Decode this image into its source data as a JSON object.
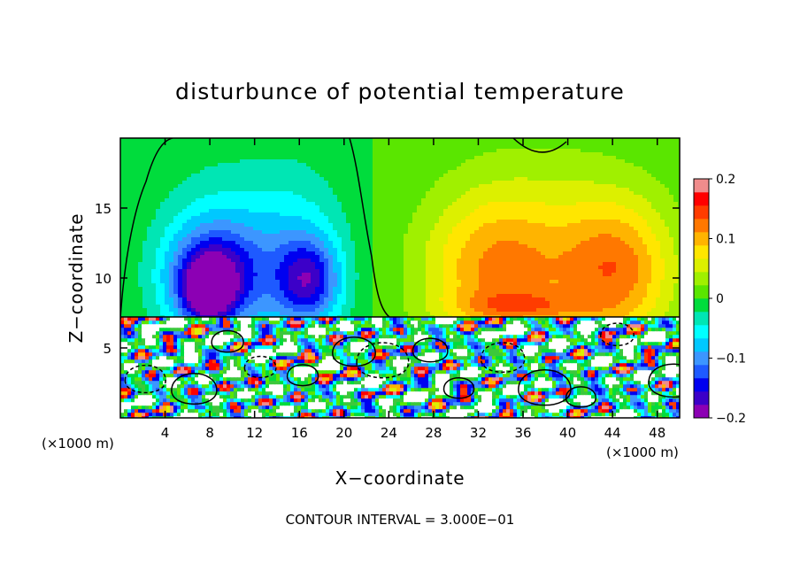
{
  "chart_data": {
    "type": "heatmap",
    "title": "disturbunce of potential temperature",
    "xlabel": "X−coordinate",
    "ylabel": "Z−coordinate",
    "x_unit_left": "(×1000 m)",
    "x_unit_right": "(×1000 m)",
    "footer": "CONTOUR INTERVAL = 3.000E−01",
    "xlim": [
      0,
      50
    ],
    "ylim": [
      0,
      20
    ],
    "x_ticks": [
      {
        "value": 4,
        "label": "4"
      },
      {
        "value": 8,
        "label": "8"
      },
      {
        "value": 12,
        "label": "12"
      },
      {
        "value": 16,
        "label": "16"
      },
      {
        "value": 20,
        "label": "20"
      },
      {
        "value": 24,
        "label": "24"
      },
      {
        "value": 28,
        "label": "28"
      },
      {
        "value": 32,
        "label": "32"
      },
      {
        "value": 36,
        "label": "36"
      },
      {
        "value": 40,
        "label": "40"
      },
      {
        "value": 44,
        "label": "44"
      },
      {
        "value": 48,
        "label": "48"
      }
    ],
    "y_ticks": [
      {
        "value": 5,
        "label": "5"
      },
      {
        "value": 10,
        "label": "10"
      },
      {
        "value": 15,
        "label": "15"
      }
    ],
    "colorbar": {
      "min": -0.2,
      "max": 0.2,
      "ticks": [
        {
          "value": 0.2,
          "label": "0.2"
        },
        {
          "value": 0.1,
          "label": "0.1"
        },
        {
          "value": 0,
          "label": "0"
        },
        {
          "value": -0.1,
          "label": "−0.1"
        },
        {
          "value": -0.2,
          "label": "−0.2"
        }
      ],
      "colors": [
        "#8c00b4",
        "#3c00c8",
        "#0000f0",
        "#1e5aff",
        "#3c96ff",
        "#00c8ff",
        "#00ffff",
        "#00e6b4",
        "#00dc3c",
        "#5ae600",
        "#a0f000",
        "#dcf000",
        "#ffe600",
        "#ffb400",
        "#ff7800",
        "#ff3c00",
        "#ff0000",
        "#f08c8c"
      ]
    },
    "upper_layer_z_range": [
      7.2,
      20
    ],
    "lower_layer_z_range": [
      0,
      7.2
    ],
    "upper_blobs": [
      {
        "x": 8.5,
        "z": 11.0,
        "rx": 5.5,
        "rz": 6.5,
        "value": -0.06
      },
      {
        "x": 15.5,
        "z": 11.5,
        "rx": 5.0,
        "rz": 6.5,
        "value": -0.06
      },
      {
        "x": 8.2,
        "z": 10.0,
        "rx": 4.0,
        "rz": 3.5,
        "value": -0.13
      },
      {
        "x": 7.8,
        "z": 9.0,
        "rx": 2.0,
        "rz": 2.0,
        "value": -0.12
      },
      {
        "x": 16.8,
        "z": 9.8,
        "rx": 2.8,
        "rz": 3.0,
        "value": -0.12
      },
      {
        "x": 33.5,
        "z": 10.5,
        "rx": 6.5,
        "rz": 5.5,
        "value": 0.09
      },
      {
        "x": 44.5,
        "z": 10.5,
        "rx": 5.0,
        "rz": 5.0,
        "value": 0.1
      },
      {
        "x": 38.5,
        "z": 12.0,
        "rx": 10.0,
        "rz": 8.0,
        "value": 0.04
      },
      {
        "x": 36.0,
        "z": 8.0,
        "rx": 6.0,
        "rz": 1.0,
        "value": 0.05
      }
    ],
    "lower_palette": [
      "#ffffff",
      "#ffffff",
      "#ffffff",
      "#ffffff",
      "#ffffff",
      "#ffffff",
      "#3cc83c",
      "#00dc3c",
      "#5ae600",
      "#00ffff",
      "#3c96ff",
      "#1e5aff",
      "#0000f0",
      "#ff3c00",
      "#ff0000",
      "#f08c8c",
      "#ffb400",
      "#dcf000"
    ],
    "lower_seed": 7
  }
}
